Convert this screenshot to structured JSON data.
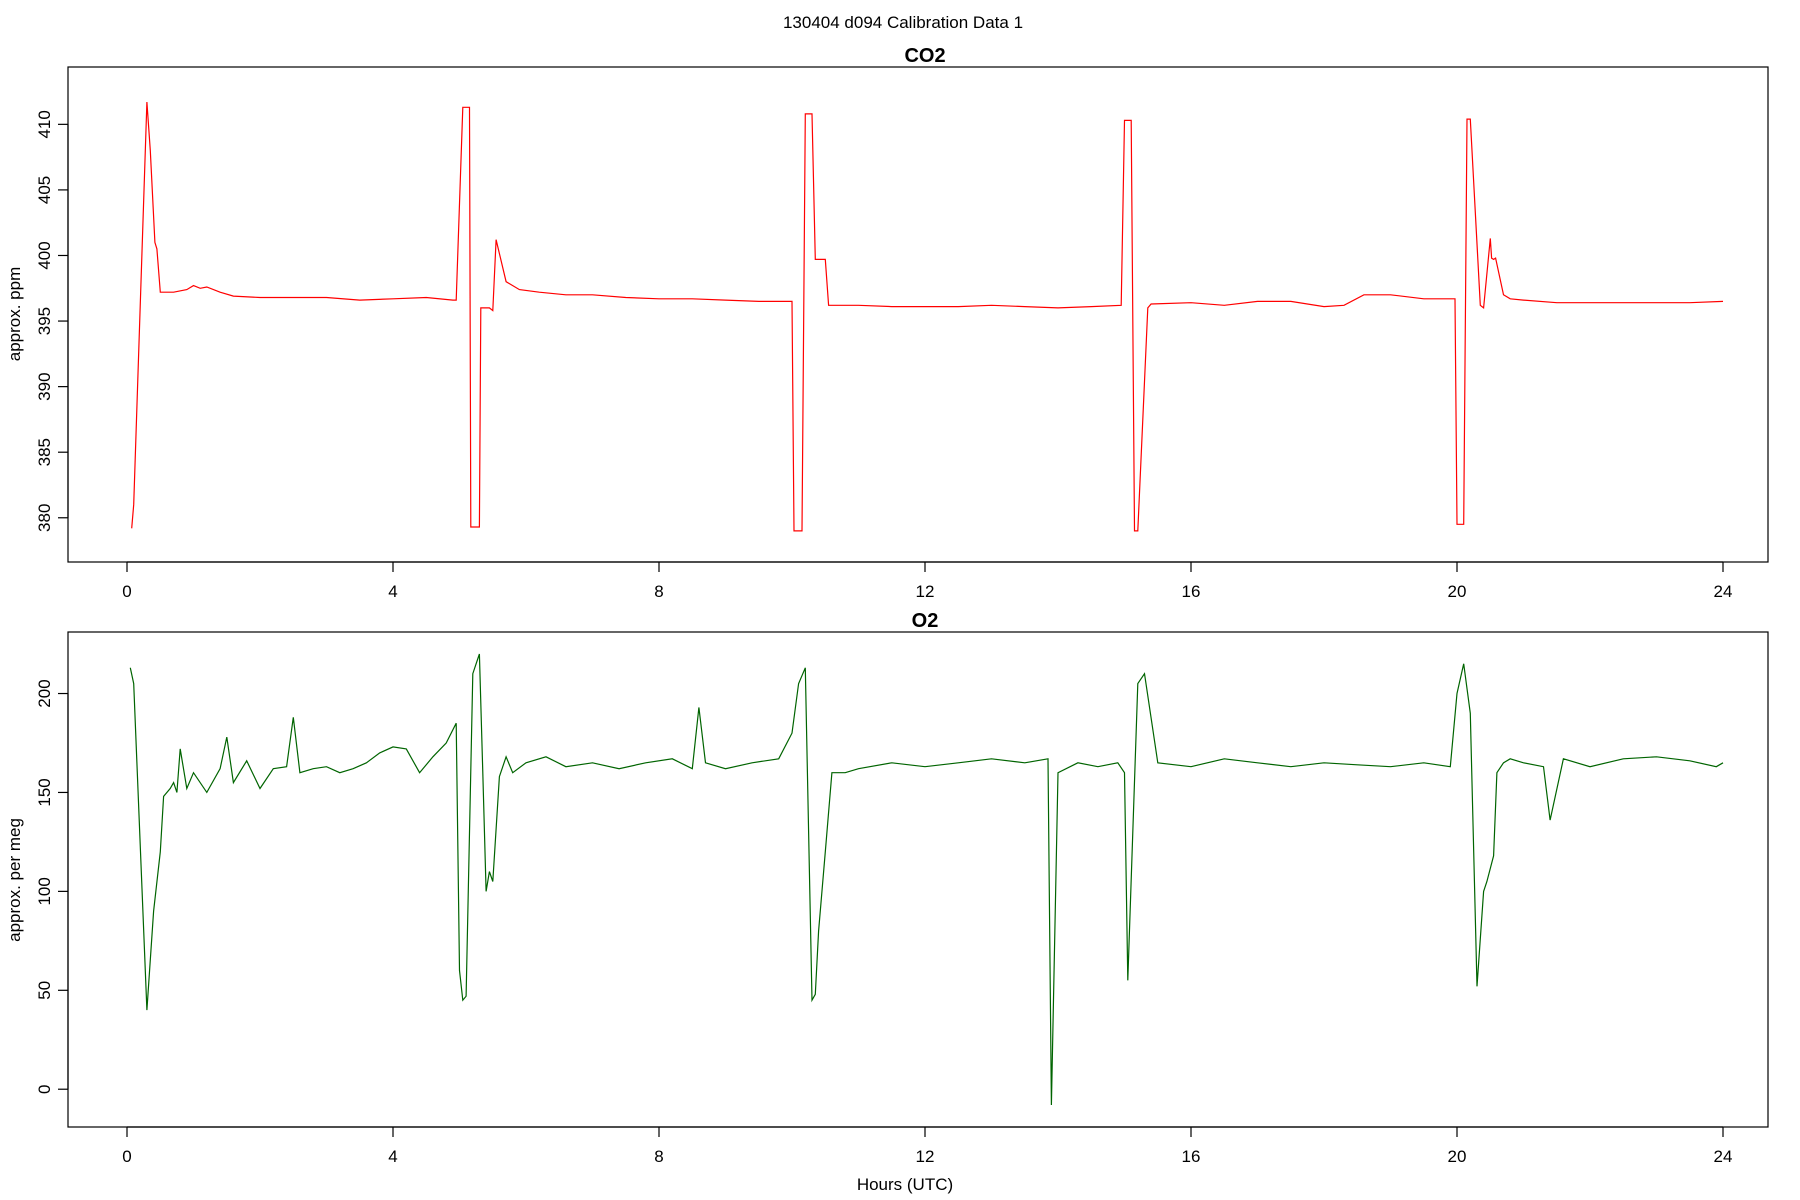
{
  "super_title": "130404   d094   Calibration Data 1",
  "chart_data": [
    {
      "type": "line",
      "title": "CO2",
      "xlabel": "",
      "ylabel": "approx. ppm",
      "xlim": [
        0,
        24
      ],
      "ylim": [
        378,
        413
      ],
      "xticks": [
        0,
        4,
        8,
        12,
        16,
        20,
        24
      ],
      "yticks": [
        380,
        385,
        390,
        395,
        400,
        405,
        410
      ],
      "grid": false,
      "series": [
        {
          "color": "#ff0000",
          "x": [
            0.07,
            0.1,
            0.3,
            0.35,
            0.42,
            0.45,
            0.5,
            0.7,
            0.9,
            1.0,
            1.1,
            1.2,
            1.4,
            1.6,
            2.0,
            2.5,
            3.0,
            3.5,
            4.0,
            4.5,
            4.9,
            4.95,
            5.05,
            5.15,
            5.17,
            5.3,
            5.32,
            5.45,
            5.5,
            5.55,
            5.7,
            5.9,
            6.2,
            6.6,
            7.0,
            7.5,
            8.0,
            8.5,
            9.0,
            9.5,
            10.0,
            10.03,
            10.15,
            10.2,
            10.3,
            10.35,
            10.5,
            10.55,
            11.0,
            11.5,
            12.0,
            12.5,
            13.0,
            13.5,
            14.0,
            14.5,
            14.95,
            15.0,
            15.1,
            15.15,
            15.2,
            15.35,
            15.4,
            16.0,
            16.5,
            17.0,
            17.5,
            18.0,
            18.3,
            18.6,
            19.0,
            19.5,
            19.97,
            20.0,
            20.1,
            20.15,
            20.2,
            20.35,
            20.4,
            20.5,
            20.52,
            20.55,
            20.58,
            20.7,
            20.8,
            21.0,
            21.5,
            22.0,
            22.5,
            23.0,
            23.5,
            24.0
          ],
          "y": [
            379.2,
            381,
            411.7,
            408,
            401,
            400.5,
            397.2,
            397.2,
            397.4,
            397.7,
            397.5,
            397.6,
            397.2,
            396.9,
            396.8,
            396.8,
            396.8,
            396.6,
            396.7,
            396.8,
            396.6,
            396.6,
            411.3,
            411.3,
            379.3,
            379.3,
            396,
            396,
            395.8,
            401.2,
            398,
            397.4,
            397.2,
            397.0,
            397.0,
            396.8,
            396.7,
            396.7,
            396.6,
            396.5,
            396.5,
            379,
            379,
            410.8,
            410.8,
            399.7,
            399.7,
            396.2,
            396.2,
            396.1,
            396.1,
            396.1,
            396.2,
            396.1,
            396.0,
            396.1,
            396.2,
            410.3,
            410.3,
            379.0,
            379.0,
            396.0,
            396.3,
            396.4,
            396.2,
            396.5,
            396.5,
            396.1,
            396.2,
            397.0,
            397.0,
            396.7,
            396.7,
            379.5,
            379.5,
            410.4,
            410.4,
            396.2,
            396.0,
            401.3,
            399.8,
            399.7,
            399.8,
            397.0,
            396.7,
            396.6,
            396.4,
            396.4,
            396.4,
            396.4,
            396.4,
            396.5
          ]
        }
      ]
    },
    {
      "type": "line",
      "title": "O2",
      "xlabel": "Hours (UTC)",
      "ylabel": "approx. per meg",
      "xlim": [
        0,
        24
      ],
      "ylim": [
        -10,
        222
      ],
      "xticks": [
        0,
        4,
        8,
        12,
        16,
        20,
        24
      ],
      "yticks": [
        0,
        50,
        100,
        150,
        200
      ],
      "grid": false,
      "series": [
        {
          "color": "#006400",
          "x": [
            0.05,
            0.1,
            0.3,
            0.4,
            0.5,
            0.55,
            0.65,
            0.7,
            0.75,
            0.8,
            0.9,
            1.0,
            1.2,
            1.4,
            1.5,
            1.6,
            1.8,
            2.0,
            2.2,
            2.4,
            2.5,
            2.6,
            2.8,
            3.0,
            3.2,
            3.4,
            3.6,
            3.8,
            4.0,
            4.2,
            4.4,
            4.6,
            4.8,
            4.95,
            5.0,
            5.05,
            5.1,
            5.2,
            5.25,
            5.3,
            5.35,
            5.4,
            5.45,
            5.5,
            5.6,
            5.7,
            5.8,
            6.0,
            6.3,
            6.6,
            7.0,
            7.4,
            7.8,
            8.2,
            8.5,
            8.6,
            8.7,
            9.0,
            9.4,
            9.8,
            10.0,
            10.1,
            10.2,
            10.3,
            10.35,
            10.4,
            10.5,
            10.6,
            10.8,
            11.0,
            11.5,
            12.0,
            12.5,
            13.0,
            13.5,
            13.85,
            13.9,
            14.0,
            14.3,
            14.6,
            14.9,
            15.0,
            15.05,
            15.2,
            15.3,
            15.5,
            16.0,
            16.5,
            17.0,
            17.5,
            18.0,
            18.5,
            19.0,
            19.5,
            19.9,
            20.0,
            20.1,
            20.2,
            20.3,
            20.4,
            20.45,
            20.55,
            20.6,
            20.7,
            20.8,
            21.0,
            21.3,
            21.4,
            21.6,
            22.0,
            22.5,
            23.0,
            23.5,
            23.9,
            24.0
          ],
          "y": [
            213,
            205,
            40,
            90,
            120,
            148,
            152,
            155,
            150,
            172,
            152,
            160,
            150,
            162,
            178,
            155,
            166,
            152,
            162,
            163,
            188,
            160,
            162,
            163,
            160,
            162,
            165,
            170,
            173,
            172,
            160,
            168,
            175,
            185,
            60,
            45,
            47,
            210,
            215,
            220,
            160,
            100,
            110,
            105,
            158,
            168,
            160,
            165,
            168,
            163,
            165,
            162,
            165,
            167,
            162,
            193,
            165,
            162,
            165,
            167,
            180,
            205,
            213,
            45,
            48,
            80,
            120,
            160,
            160,
            162,
            165,
            163,
            165,
            167,
            165,
            167,
            -8,
            160,
            165,
            163,
            165,
            160,
            55,
            205,
            210,
            165,
            163,
            167,
            165,
            163,
            165,
            164,
            163,
            165,
            163,
            200,
            215,
            190,
            52,
            100,
            105,
            118,
            160,
            165,
            167,
            165,
            163,
            136,
            167,
            163,
            167,
            168,
            166,
            163,
            165
          ]
        }
      ]
    }
  ]
}
